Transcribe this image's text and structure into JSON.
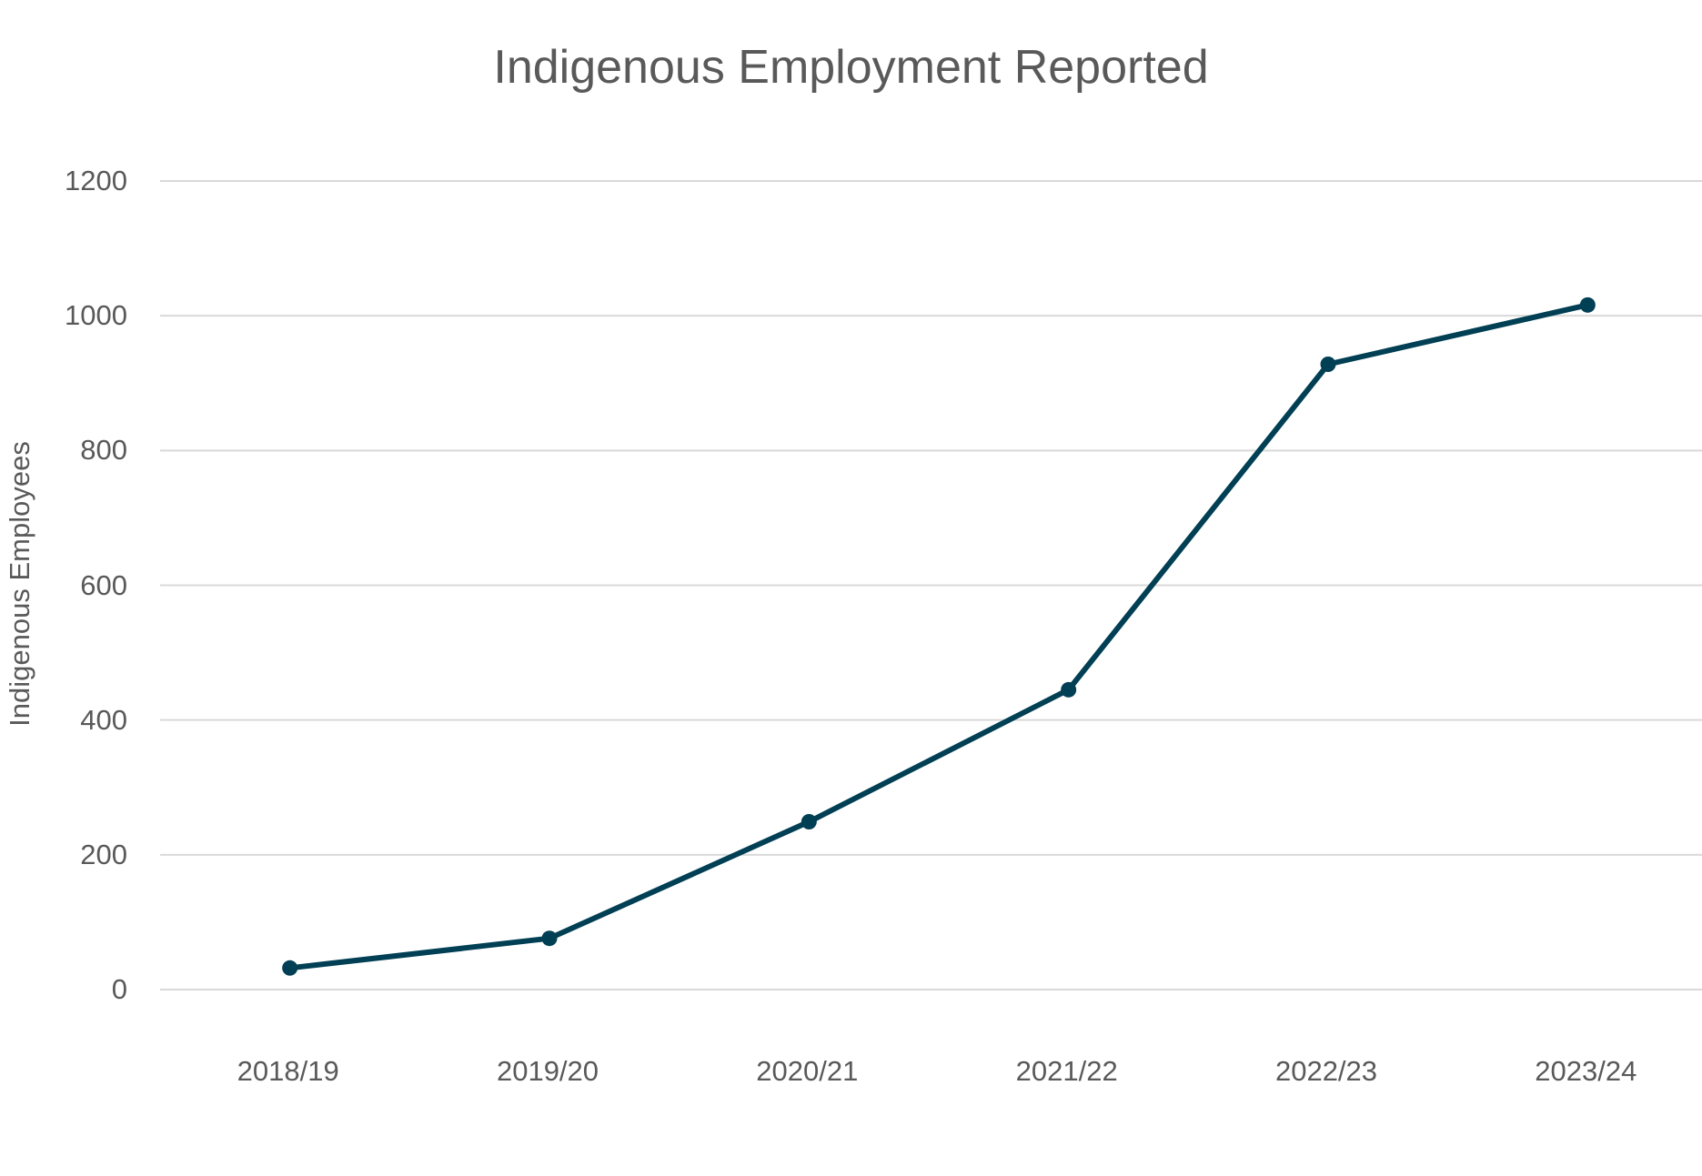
{
  "chart_data": {
    "type": "line",
    "title": "Indigenous Employment Reported",
    "xlabel": "",
    "ylabel": "Indigenous Employees",
    "categories": [
      "2018/19",
      "2019/20",
      "2020/21",
      "2021/22",
      "2022/23",
      "2023/24"
    ],
    "series": [
      {
        "name": "Indigenous Employees",
        "values": [
          32,
          76,
          249,
          445,
          928,
          1016
        ],
        "color": "#003f54"
      }
    ],
    "ylim": [
      0,
      1200
    ],
    "yticks": [
      0,
      200,
      400,
      600,
      800,
      1000,
      1200
    ],
    "ytick_labels": [
      "0",
      "200",
      "400",
      "600",
      "800",
      "1000",
      "1200"
    ],
    "grid": true,
    "legend": "none",
    "markers": true
  }
}
